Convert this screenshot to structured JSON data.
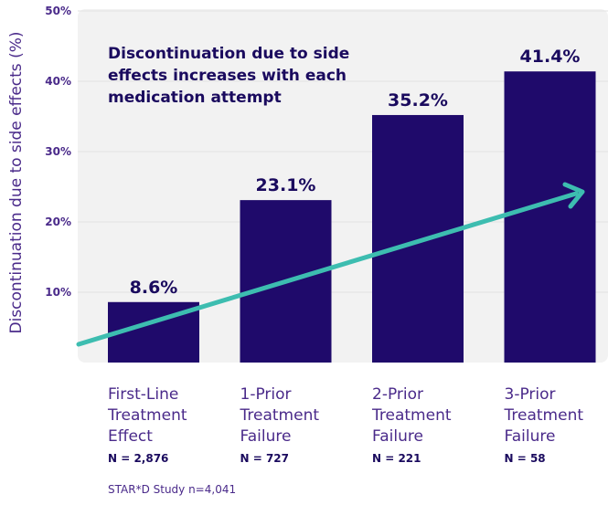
{
  "chart_data": {
    "type": "bar",
    "ylabel": "Discontinuation due to side effects (%)",
    "ylim": [
      0,
      50
    ],
    "yticks": [
      "10%",
      "20%",
      "30%",
      "40%",
      "50%"
    ],
    "categories": [
      {
        "lines": [
          "First-Line",
          "Treatment",
          "Effect"
        ],
        "n": "N = 2,876"
      },
      {
        "lines": [
          "1-Prior",
          "Treatment",
          "Failure"
        ],
        "n": "N = 727"
      },
      {
        "lines": [
          "2-Prior",
          "Treatment",
          "Failure"
        ],
        "n": "N = 221"
      },
      {
        "lines": [
          "3-Prior",
          "Treatment",
          "Failure"
        ],
        "n": "N = 58"
      }
    ],
    "values": [
      8.6,
      23.1,
      35.2,
      41.4
    ],
    "value_labels": [
      "8.6%",
      "23.1%",
      "35.2%",
      "41.4%"
    ],
    "annotation": [
      "Discontinuation due to side",
      "effects increases with each",
      "medication attempt"
    ],
    "trend_arrow": true,
    "grid": true,
    "colors": {
      "bar": "#1f0a6b",
      "arrow": "#3dbdb0",
      "panel": "#f2f2f2",
      "grid": "#e2e2e2",
      "text": "#4a2a8a"
    }
  },
  "footer": "STAR*D Study n=4,041"
}
